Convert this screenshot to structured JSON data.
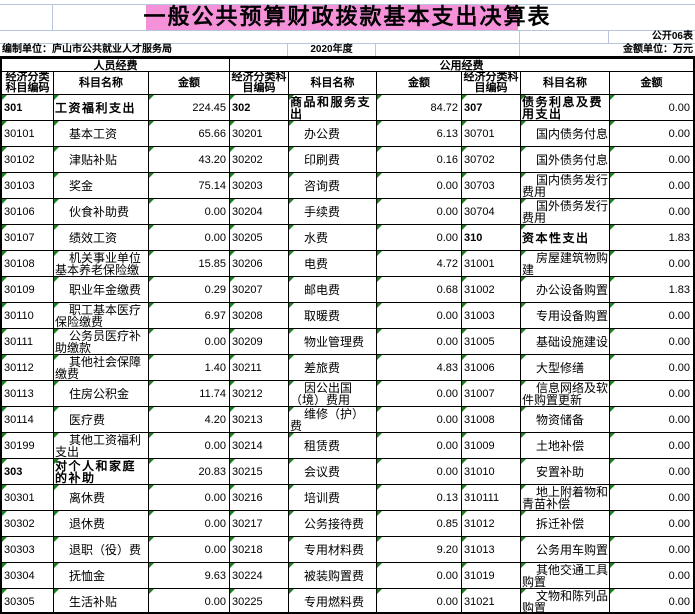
{
  "title": "一般公共预算财政拨款基本支出决算表",
  "sheet_label": "公开06表",
  "meta": {
    "prepared_by": "编制单位：庐山市公共就业人才服务局",
    "year": "2020年度",
    "unit": "金额单位：万元"
  },
  "table": {
    "group_headers": [
      "人员经费",
      "公用经费"
    ],
    "column_headers": [
      "经济分类科目编码",
      "科目名称",
      "金额",
      "经济分类科目编码",
      "科目名称",
      "金额",
      "经济分类科目编码",
      "科目名称",
      "金额"
    ],
    "rows": [
      {
        "cells": [
          "301",
          "工资福利支出",
          "224.45",
          "302",
          "商品和服务支出",
          "84.72",
          "307",
          "债务利息及费用支出",
          "0.00"
        ],
        "bold": [
          0,
          1,
          3,
          4,
          6,
          7
        ]
      },
      {
        "cells": [
          "30101",
          "基本工资",
          "65.66",
          "30201",
          "办公费",
          "6.13",
          "30701",
          "国内债务付息",
          "0.00"
        ]
      },
      {
        "cells": [
          "30102",
          "津贴补贴",
          "43.20",
          "30202",
          "印刷费",
          "0.16",
          "30702",
          "国外债务付息",
          "0.00"
        ]
      },
      {
        "cells": [
          "30103",
          "奖金",
          "75.14",
          "30203",
          "咨询费",
          "0.00",
          "30703",
          "国内债务发行费用",
          "0.00"
        ]
      },
      {
        "cells": [
          "30106",
          "伙食补助费",
          "0.00",
          "30204",
          "手续费",
          "0.00",
          "30704",
          "国外债务发行费用",
          "0.00"
        ]
      },
      {
        "cells": [
          "30107",
          "绩效工资",
          "0.00",
          "30205",
          "水费",
          "0.00",
          "310",
          "资本性支出",
          "1.83"
        ],
        "bold": [
          6,
          7
        ]
      },
      {
        "cells": [
          "30108",
          "机关事业单位基本养老保险缴费",
          "15.85",
          "30206",
          "电费",
          "4.72",
          "31001",
          "房屋建筑物购建",
          "0.00"
        ]
      },
      {
        "cells": [
          "30109",
          "职业年金缴费",
          "0.29",
          "30207",
          "邮电费",
          "0.68",
          "31002",
          "办公设备购置",
          "1.83"
        ]
      },
      {
        "cells": [
          "30110",
          "职工基本医疗保险缴费",
          "6.97",
          "30208",
          "取暖费",
          "0.00",
          "31003",
          "专用设备购置",
          "0.00"
        ]
      },
      {
        "cells": [
          "30111",
          "公务员医疗补助缴款",
          "0.00",
          "30209",
          "物业管理费",
          "0.00",
          "31005",
          "基础设施建设",
          "0.00"
        ]
      },
      {
        "cells": [
          "30112",
          "其他社会保障缴费",
          "1.40",
          "30211",
          "差旅费",
          "4.83",
          "31006",
          "大型修缮",
          "0.00"
        ]
      },
      {
        "cells": [
          "30113",
          "住房公积金",
          "11.74",
          "30212",
          "因公出国（境）费用",
          "0.00",
          "31007",
          "信息网络及软件购置更新",
          "0.00"
        ]
      },
      {
        "cells": [
          "30114",
          "医疗费",
          "4.20",
          "30213",
          "维修（护）费",
          "0.00",
          "31008",
          "物资储备",
          "0.00"
        ]
      },
      {
        "cells": [
          "30199",
          "其他工资福利支出",
          "0.00",
          "30214",
          "租赁费",
          "0.00",
          "31009",
          "土地补偿",
          "0.00"
        ]
      },
      {
        "cells": [
          "303",
          "对个人和家庭的补助",
          "20.83",
          "30215",
          "会议费",
          "0.00",
          "31010",
          "安置补助",
          "0.00"
        ],
        "bold": [
          0,
          1
        ]
      },
      {
        "cells": [
          "30301",
          "离休费",
          "0.00",
          "30216",
          "培训费",
          "0.13",
          "310111",
          "地上附着物和青苗补偿",
          "0.00"
        ]
      },
      {
        "cells": [
          "30302",
          "退休费",
          "0.00",
          "30217",
          "公务接待费",
          "0.85",
          "31012",
          "拆迁补偿",
          "0.00"
        ]
      },
      {
        "cells": [
          "30303",
          "退职（役）费",
          "0.00",
          "30218",
          "专用材料费",
          "9.20",
          "31013",
          "公务用车购置",
          "0.00"
        ]
      },
      {
        "cells": [
          "30304",
          "抚恤金",
          "9.63",
          "30224",
          "被装购置费",
          "0.00",
          "31019",
          "其他交通工具购置",
          "0.00"
        ]
      },
      {
        "cells": [
          "30305",
          "生活补贴",
          "0.00",
          "30225",
          "专用燃料费",
          "0.00",
          "31021",
          "文物和陈列品购置",
          "0.00"
        ]
      }
    ]
  },
  "colors": {
    "highlight": "#f06ccc",
    "gridline": "#b9c4dd",
    "border": "#000000",
    "triangle": "#1f7f1f",
    "bg": "#ffffff"
  }
}
